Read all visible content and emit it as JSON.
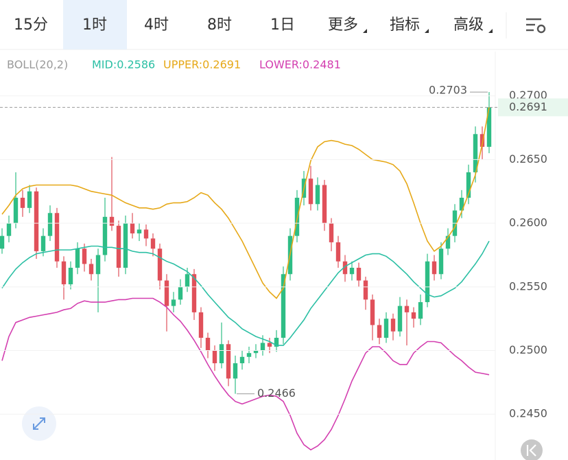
{
  "tabs": [
    {
      "label": "15分"
    },
    {
      "label": "1时",
      "active": true
    },
    {
      "label": "4时"
    },
    {
      "label": "8时"
    },
    {
      "label": "1日"
    },
    {
      "label": "更多",
      "dropdown": true
    },
    {
      "label": "指标",
      "dropdown": true
    },
    {
      "label": "高级",
      "dropdown": true
    }
  ],
  "indicator": {
    "name": "BOLL(20,2)",
    "mid": "MID:0.2586",
    "upper": "UPPER:0.2691",
    "lower": "LOWER:0.2481"
  },
  "chart_data": {
    "type": "candlestick",
    "up_color": "#2ebd85",
    "down_color": "#e0505a",
    "ylim": [
      0.2414,
      0.2716
    ],
    "yticks": [
      {
        "value": 0.27,
        "label": "0.2700"
      },
      {
        "value": 0.265,
        "label": "0.2650"
      },
      {
        "value": 0.26,
        "label": "0.2600"
      },
      {
        "value": 0.255,
        "label": "0.2550"
      },
      {
        "value": 0.25,
        "label": "0.2500"
      },
      {
        "value": 0.245,
        "label": "0.2450"
      }
    ],
    "grid": true,
    "ohlc": {
      "open": [
        0.258,
        0.259,
        0.26,
        0.262,
        0.2612,
        0.2625,
        0.2578,
        0.259,
        0.2608,
        0.257,
        0.2552,
        0.2565,
        0.258,
        0.2568,
        0.256,
        0.2575,
        0.2605,
        0.2598,
        0.2565,
        0.26,
        0.2592,
        0.2595,
        0.2588,
        0.258,
        0.2555,
        0.2535,
        0.254,
        0.255,
        0.256,
        0.253,
        0.251,
        0.25,
        0.249,
        0.2505,
        0.2478,
        0.249,
        0.2495,
        0.2498,
        0.25,
        0.2506,
        0.2503,
        0.251,
        0.256,
        0.259,
        0.262,
        0.2635,
        0.2615,
        0.263,
        0.26,
        0.2585,
        0.257,
        0.256,
        0.2565,
        0.2555,
        0.254,
        0.252,
        0.251,
        0.2525,
        0.2515,
        0.2535,
        0.253,
        0.2525,
        0.2538,
        0.257,
        0.256,
        0.258,
        0.259,
        0.261,
        0.262,
        0.264,
        0.267,
        0.266
      ],
      "high": [
        0.2596,
        0.2606,
        0.264,
        0.2626,
        0.263,
        0.2628,
        0.2596,
        0.2614,
        0.2612,
        0.2574,
        0.257,
        0.2585,
        0.2584,
        0.2572,
        0.258,
        0.262,
        0.2652,
        0.2602,
        0.2606,
        0.2608,
        0.26,
        0.2599,
        0.2592,
        0.2584,
        0.256,
        0.2546,
        0.2556,
        0.2565,
        0.2564,
        0.2534,
        0.2514,
        0.2504,
        0.2522,
        0.2508,
        0.2496,
        0.25,
        0.2503,
        0.2505,
        0.2512,
        0.251,
        0.2516,
        0.2566,
        0.2596,
        0.2626,
        0.2641,
        0.2645,
        0.2636,
        0.2634,
        0.2604,
        0.259,
        0.2575,
        0.257,
        0.2569,
        0.2558,
        0.2544,
        0.2525,
        0.253,
        0.2529,
        0.2542,
        0.254,
        0.2534,
        0.2544,
        0.2576,
        0.2575,
        0.2585,
        0.2596,
        0.2615,
        0.2626,
        0.2646,
        0.2676,
        0.2676,
        0.2703
      ],
      "low": [
        0.2576,
        0.2585,
        0.2596,
        0.2605,
        0.2608,
        0.2572,
        0.2574,
        0.2586,
        0.2565,
        0.254,
        0.2548,
        0.256,
        0.2562,
        0.2555,
        0.253,
        0.257,
        0.2594,
        0.2558,
        0.256,
        0.2588,
        0.2586,
        0.2582,
        0.2574,
        0.2548,
        0.2515,
        0.253,
        0.2536,
        0.2546,
        0.2524,
        0.2502,
        0.2494,
        0.2484,
        0.2486,
        0.2472,
        0.2466,
        0.2485,
        0.249,
        0.2494,
        0.2496,
        0.2498,
        0.2499,
        0.2505,
        0.2555,
        0.2585,
        0.2614,
        0.261,
        0.261,
        0.2594,
        0.2578,
        0.2565,
        0.2554,
        0.2555,
        0.255,
        0.2532,
        0.2508,
        0.2505,
        0.2506,
        0.2508,
        0.2511,
        0.2504,
        0.2518,
        0.252,
        0.2534,
        0.2555,
        0.2556,
        0.2575,
        0.2585,
        0.2604,
        0.2615,
        0.2632,
        0.265,
        0.2655
      ],
      "close": [
        0.259,
        0.26,
        0.262,
        0.2612,
        0.2625,
        0.2578,
        0.259,
        0.2608,
        0.257,
        0.2552,
        0.2565,
        0.258,
        0.2568,
        0.256,
        0.2575,
        0.2605,
        0.2598,
        0.2565,
        0.26,
        0.2592,
        0.2595,
        0.2588,
        0.258,
        0.2555,
        0.2535,
        0.254,
        0.255,
        0.256,
        0.253,
        0.251,
        0.25,
        0.249,
        0.2505,
        0.2478,
        0.249,
        0.2495,
        0.2498,
        0.25,
        0.2506,
        0.2503,
        0.251,
        0.256,
        0.259,
        0.262,
        0.2635,
        0.2615,
        0.263,
        0.26,
        0.2585,
        0.257,
        0.256,
        0.2565,
        0.2555,
        0.254,
        0.252,
        0.251,
        0.2525,
        0.2515,
        0.2535,
        0.253,
        0.2525,
        0.2538,
        0.257,
        0.256,
        0.258,
        0.259,
        0.261,
        0.262,
        0.264,
        0.267,
        0.266,
        0.2691
      ]
    },
    "bands": {
      "mid": {
        "color": "#2bbfa4",
        "values": [
          0.2549,
          0.2557,
          0.2564,
          0.2569,
          0.2573,
          0.2576,
          0.2577,
          0.2578,
          0.2579,
          0.2579,
          0.2579,
          0.258,
          0.2581,
          0.2582,
          0.2582,
          0.2581,
          0.2581,
          0.258,
          0.258,
          0.2578,
          0.2577,
          0.2577,
          0.2576,
          0.2573,
          0.257,
          0.2568,
          0.2565,
          0.2562,
          0.2557,
          0.2551,
          0.2544,
          0.2538,
          0.2532,
          0.2526,
          0.2522,
          0.2517,
          0.2514,
          0.2511,
          0.2509,
          0.2507,
          0.2504,
          0.2504,
          0.251,
          0.2517,
          0.2524,
          0.2533,
          0.254,
          0.2547,
          0.2554,
          0.2561,
          0.2566,
          0.2569,
          0.2572,
          0.2575,
          0.2576,
          0.2576,
          0.2574,
          0.257,
          0.2565,
          0.256,
          0.2554,
          0.2549,
          0.2544,
          0.2542,
          0.2543,
          0.2546,
          0.2549,
          0.2554,
          0.2561,
          0.2568,
          0.2576,
          0.2586
        ]
      },
      "upper": {
        "color": "#e6a817",
        "values": [
          0.2607,
          0.2614,
          0.2622,
          0.2627,
          0.2629,
          0.263,
          0.263,
          0.263,
          0.263,
          0.263,
          0.263,
          0.2629,
          0.2627,
          0.2625,
          0.2624,
          0.2623,
          0.2622,
          0.2619,
          0.2616,
          0.2614,
          0.2612,
          0.2612,
          0.2611,
          0.2612,
          0.2615,
          0.2616,
          0.2616,
          0.2617,
          0.262,
          0.2624,
          0.2622,
          0.2616,
          0.2611,
          0.2604,
          0.2595,
          0.2586,
          0.2575,
          0.2564,
          0.2553,
          0.2546,
          0.2541,
          0.2549,
          0.2576,
          0.2603,
          0.2627,
          0.2649,
          0.266,
          0.2664,
          0.2665,
          0.2664,
          0.2662,
          0.2661,
          0.2658,
          0.2654,
          0.265,
          0.2649,
          0.2648,
          0.2646,
          0.2641,
          0.2631,
          0.2616,
          0.26,
          0.2586,
          0.2578,
          0.2582,
          0.2589,
          0.2597,
          0.2609,
          0.2623,
          0.2638,
          0.2662,
          0.2691
        ]
      },
      "lower": {
        "color": "#d33fb0",
        "values": [
          0.2492,
          0.2511,
          0.2522,
          0.2524,
          0.2526,
          0.2527,
          0.2528,
          0.2529,
          0.253,
          0.2532,
          0.2533,
          0.2537,
          0.2539,
          0.2538,
          0.2538,
          0.2538,
          0.2539,
          0.254,
          0.254,
          0.2541,
          0.2541,
          0.2541,
          0.2541,
          0.2538,
          0.2534,
          0.2528,
          0.2523,
          0.2516,
          0.2508,
          0.2499,
          0.2489,
          0.248,
          0.2472,
          0.2465,
          0.246,
          0.2458,
          0.246,
          0.2462,
          0.2464,
          0.2465,
          0.2464,
          0.246,
          0.2449,
          0.2435,
          0.2426,
          0.2422,
          0.2425,
          0.243,
          0.2438,
          0.2449,
          0.2462,
          0.2476,
          0.2487,
          0.2498,
          0.2503,
          0.2503,
          0.2498,
          0.2492,
          0.2489,
          0.2489,
          0.2498,
          0.2503,
          0.2507,
          0.2507,
          0.2506,
          0.2501,
          0.2496,
          0.2492,
          0.2487,
          0.2483,
          0.2482,
          0.2481
        ]
      }
    },
    "max_marker": {
      "value": 0.2703,
      "label": "0.2703"
    },
    "min_marker": {
      "value": 0.2466,
      "label": "0.2466"
    },
    "last_price": {
      "value": 0.2691,
      "label": "0.2691"
    }
  }
}
